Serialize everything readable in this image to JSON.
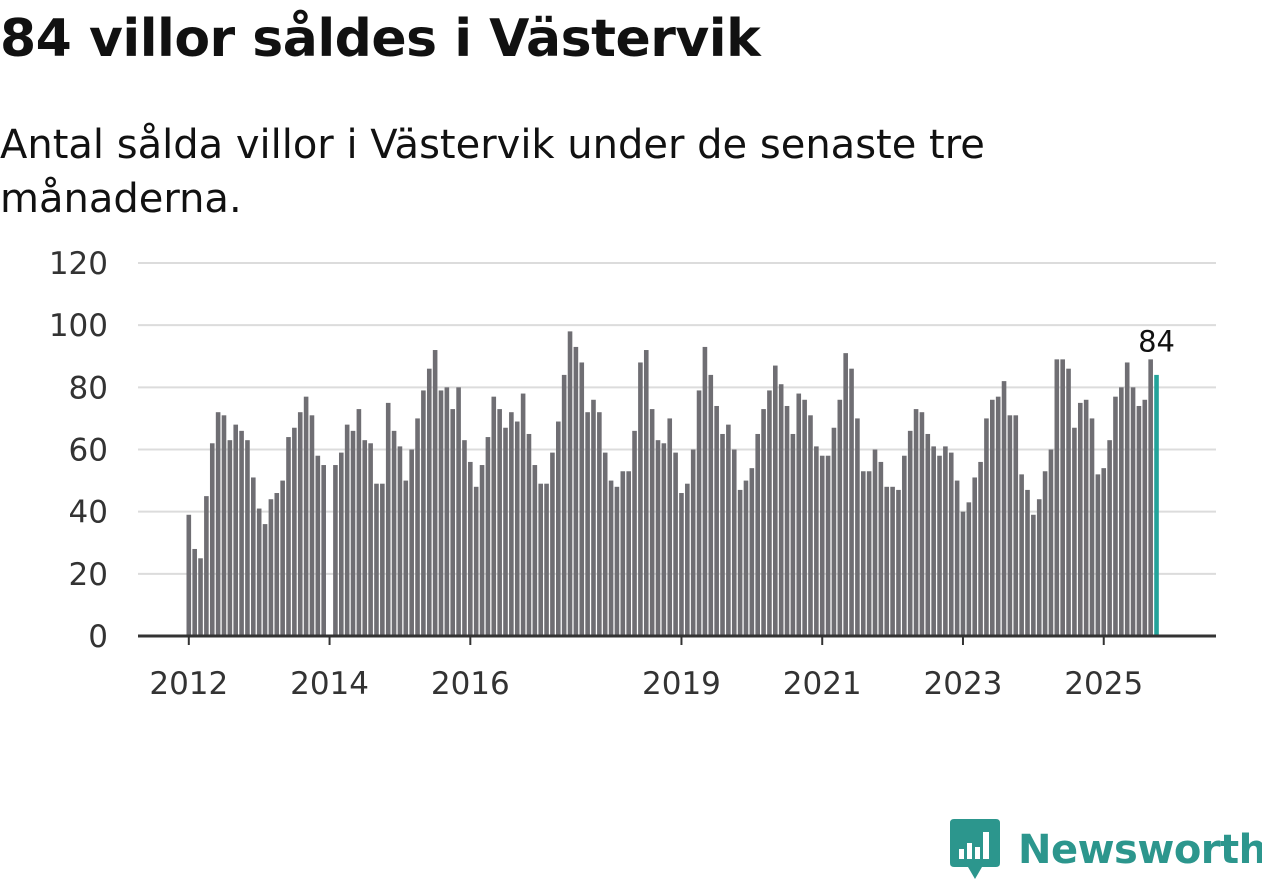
{
  "chart_data": {
    "type": "bar",
    "title": "84 villor såldes i Västervik",
    "subtitle": "Antal sålda villor i Västervik under de senaste tre månaderna.",
    "xlabel": "",
    "ylabel": "",
    "ylim": [
      0,
      120
    ],
    "yticks": [
      "0",
      "20",
      "40",
      "60",
      "80",
      "100",
      "120"
    ],
    "xtick_labels": [
      {
        "label": "2012",
        "index": 0
      },
      {
        "label": "2014",
        "index": 24
      },
      {
        "label": "2016",
        "index": 48
      },
      {
        "label": "2019",
        "index": 84
      },
      {
        "label": "2021",
        "index": 108
      },
      {
        "label": "2023",
        "index": 132
      },
      {
        "label": "2025",
        "index": 156
      }
    ],
    "start_period": "2012-01",
    "values": [
      39,
      28,
      25,
      45,
      62,
      72,
      71,
      63,
      68,
      66,
      63,
      51,
      41,
      36,
      44,
      46,
      50,
      64,
      67,
      72,
      77,
      71,
      58,
      55,
      0,
      55,
      59,
      68,
      66,
      73,
      63,
      62,
      49,
      49,
      75,
      66,
      61,
      50,
      60,
      70,
      79,
      86,
      92,
      79,
      80,
      73,
      80,
      63,
      56,
      48,
      55,
      64,
      77,
      73,
      67,
      72,
      69,
      78,
      65,
      55,
      49,
      49,
      59,
      69,
      84,
      98,
      93,
      88,
      72,
      76,
      72,
      59,
      50,
      48,
      53,
      53,
      66,
      88,
      92,
      73,
      63,
      62,
      70,
      59,
      46,
      49,
      60,
      79,
      93,
      84,
      74,
      65,
      68,
      60,
      47,
      50,
      54,
      65,
      73,
      79,
      87,
      81,
      74,
      65,
      78,
      76,
      71,
      61,
      58,
      58,
      67,
      76,
      91,
      86,
      70,
      53,
      53,
      60,
      56,
      48,
      48,
      47,
      58,
      66,
      73,
      72,
      65,
      61,
      58,
      61,
      59,
      50,
      40,
      43,
      51,
      56,
      70,
      76,
      77,
      82,
      71,
      71,
      52,
      47,
      39,
      44,
      53,
      60,
      89,
      89,
      86,
      67,
      75,
      76,
      70,
      52,
      54,
      63,
      77,
      80,
      88,
      80,
      74,
      76,
      89,
      84
    ],
    "bar_color": "#6f6e73",
    "highlight_color": "#24a39a",
    "highlight_index": 165,
    "last_value_label": "84"
  },
  "brand": {
    "name": "Newsworthy",
    "icon": "newsworthy-logo-icon",
    "color": "#2c968d"
  }
}
